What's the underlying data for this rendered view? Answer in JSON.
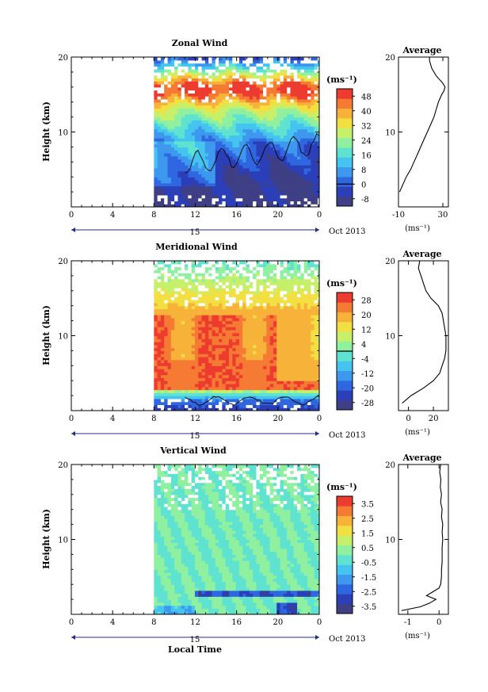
{
  "colors": {
    "palette": [
      "#3f3f86",
      "#2b3fb8",
      "#2e67e0",
      "#3d98ee",
      "#45c4f0",
      "#5fe3d0",
      "#8ff0a0",
      "#c6f06a",
      "#f2e043",
      "#f7b23a",
      "#f57a33",
      "#ee3b2f"
    ],
    "nodata": "#ffffff",
    "frame": "#000000",
    "timebar": "#1e2f8c"
  },
  "chart_data": [
    {
      "type": "heatmap",
      "name": "zonal",
      "title": "Zonal Wind",
      "ylabel": "Height (km)",
      "xlabel": "",
      "x_ticks": [
        "0",
        "4",
        "8",
        "12",
        "16",
        "20",
        "0"
      ],
      "xlim": [
        0,
        24
      ],
      "y_ticks": [
        "10",
        "20"
      ],
      "ylim": [
        0,
        20
      ],
      "data_start_hour": 8,
      "units_label": "(ms⁻¹)",
      "colorbar_ticks": [
        "48",
        "40",
        "32",
        "24",
        "16",
        "8",
        "0",
        "-8"
      ],
      "colorbar_range": [
        -12,
        52
      ],
      "contour_value": 0,
      "date_day": "15",
      "date_label": "Oct 2013",
      "profile": {
        "title": "Average",
        "x_ticks": [
          "-10",
          "30"
        ],
        "xlim": [
          -10,
          35
        ],
        "xlabel": "(ms⁻¹)",
        "y_ticks": [
          "10",
          "20"
        ],
        "height_km": [
          2,
          3,
          4,
          5,
          6,
          7,
          8,
          9,
          10,
          11,
          12,
          13,
          14,
          15,
          15.5,
          16,
          16.5,
          17,
          17.5,
          18,
          18.5,
          19,
          19.5,
          20
        ],
        "value": [
          -9,
          -6,
          -3,
          1,
          4,
          7,
          10,
          13,
          16,
          19,
          22,
          24,
          26,
          29,
          31,
          32,
          30,
          27,
          24,
          22,
          20,
          19,
          18,
          18
        ]
      }
    },
    {
      "type": "heatmap",
      "name": "meridional",
      "title": "Meridional Wind",
      "ylabel": "Height (km)",
      "xlabel": "",
      "x_ticks": [
        "0",
        "4",
        "8",
        "12",
        "16",
        "20",
        "0"
      ],
      "xlim": [
        0,
        24
      ],
      "y_ticks": [
        "10",
        "20"
      ],
      "ylim": [
        0,
        20
      ],
      "data_start_hour": 8,
      "units_label": "(ms⁻¹)",
      "colorbar_ticks": [
        "28",
        "20",
        "12",
        "4",
        "-4",
        "-12",
        "-20",
        "-28"
      ],
      "colorbar_range": [
        -32,
        32
      ],
      "contour_value": 0,
      "date_day": "15",
      "date_label": "Oct 2013",
      "profile": {
        "title": "Average",
        "x_ticks": [
          "0",
          "20"
        ],
        "xlim": [
          -8,
          32
        ],
        "xlabel": "(ms⁻¹)",
        "y_ticks": [
          "10",
          "20"
        ],
        "height_km": [
          1,
          2,
          3,
          4,
          5,
          6,
          7,
          8,
          9,
          10,
          11,
          12,
          13,
          14,
          15,
          16,
          17,
          18,
          19,
          20
        ],
        "value": [
          -5,
          2,
          12,
          20,
          25,
          27,
          29,
          30,
          30,
          30,
          29,
          28,
          27,
          24,
          18,
          14,
          12,
          10,
          8,
          9
        ]
      }
    },
    {
      "type": "heatmap",
      "name": "vertical",
      "title": "Vertical Wind",
      "ylabel": "Height (km)",
      "xlabel": "Local Time",
      "x_ticks": [
        "0",
        "4",
        "8",
        "12",
        "16",
        "20",
        "0"
      ],
      "xlim": [
        0,
        24
      ],
      "y_ticks": [
        "10",
        "20"
      ],
      "ylim": [
        0,
        20
      ],
      "data_start_hour": 8,
      "units_label": "(ms⁻¹)",
      "colorbar_ticks": [
        "3.5",
        "2.5",
        "1.5",
        "0.5",
        "-0.5",
        "-1.5",
        "-2.5",
        "-3.5"
      ],
      "colorbar_range": [
        -4,
        4
      ],
      "contour_value": null,
      "date_day": "15",
      "date_label": "Oct 2013",
      "profile": {
        "title": "Average",
        "x_ticks": [
          "-1",
          "0"
        ],
        "xlim": [
          -1.3,
          0.3
        ],
        "xlabel": "(ms⁻¹)",
        "y_ticks": [
          "10",
          "20"
        ],
        "height_km": [
          0.5,
          1,
          1.5,
          2,
          2.5,
          3,
          3.5,
          4,
          5,
          6,
          7,
          8,
          9,
          10,
          11,
          12,
          13,
          14,
          15,
          16,
          17,
          18,
          19,
          20
        ],
        "value": [
          -1.2,
          -0.6,
          -0.3,
          -0.1,
          -0.4,
          -0.2,
          0.0,
          0.05,
          0.08,
          0.08,
          0.1,
          0.1,
          0.1,
          0.12,
          0.1,
          0.12,
          0.08,
          0.1,
          0.05,
          0.08,
          0.04,
          0.06,
          0.02,
          0.05
        ]
      }
    }
  ]
}
